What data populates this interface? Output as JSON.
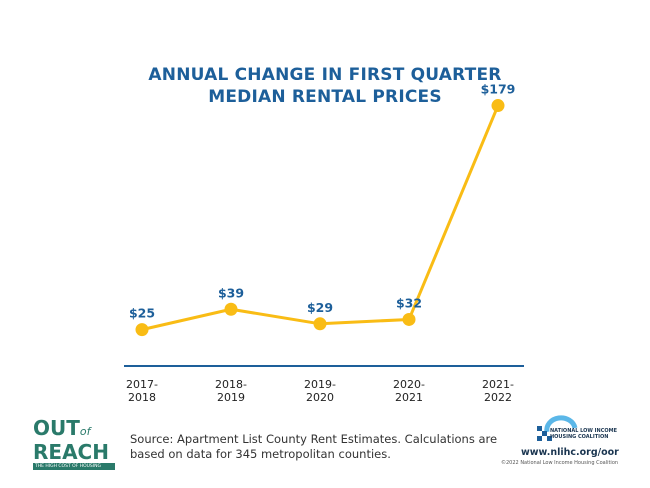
{
  "chart_data": {
    "type": "line",
    "title": [
      "ANNUAL CHANGE IN FIRST QUARTER",
      "MEDIAN RENTAL PRICES"
    ],
    "categories": [
      [
        "2017-",
        "2018"
      ],
      [
        "2018-",
        "2019"
      ],
      [
        "2019-",
        "2020"
      ],
      [
        "2020-",
        "2021"
      ],
      [
        "2021-",
        "2022"
      ]
    ],
    "values": [
      25,
      39,
      29,
      32,
      179
    ],
    "data_labels": [
      "$25",
      "$39",
      "$29",
      "$32",
      "$179"
    ],
    "ylim": [
      0,
      200
    ],
    "grid": false,
    "colors": {
      "line": "#f9bc15",
      "labels": "#1d5f9a",
      "axis": "#1d5f9a"
    }
  },
  "source": "Source: Apartment List County Rent Estimates. Calculations are based on data for 345 metropolitan counties.",
  "logo_left": {
    "line1": "OUT",
    "of": "of",
    "line2": "REACH",
    "tagline": "THE HIGH COST OF HOUSING"
  },
  "logo_right": {
    "org_line1": "NATIONAL LOW INCOME",
    "org_line2": "HOUSING COALITION",
    "url": "www.nlihc.org/oor",
    "copyright": "©2022 National Low Income Housing Coalition"
  }
}
